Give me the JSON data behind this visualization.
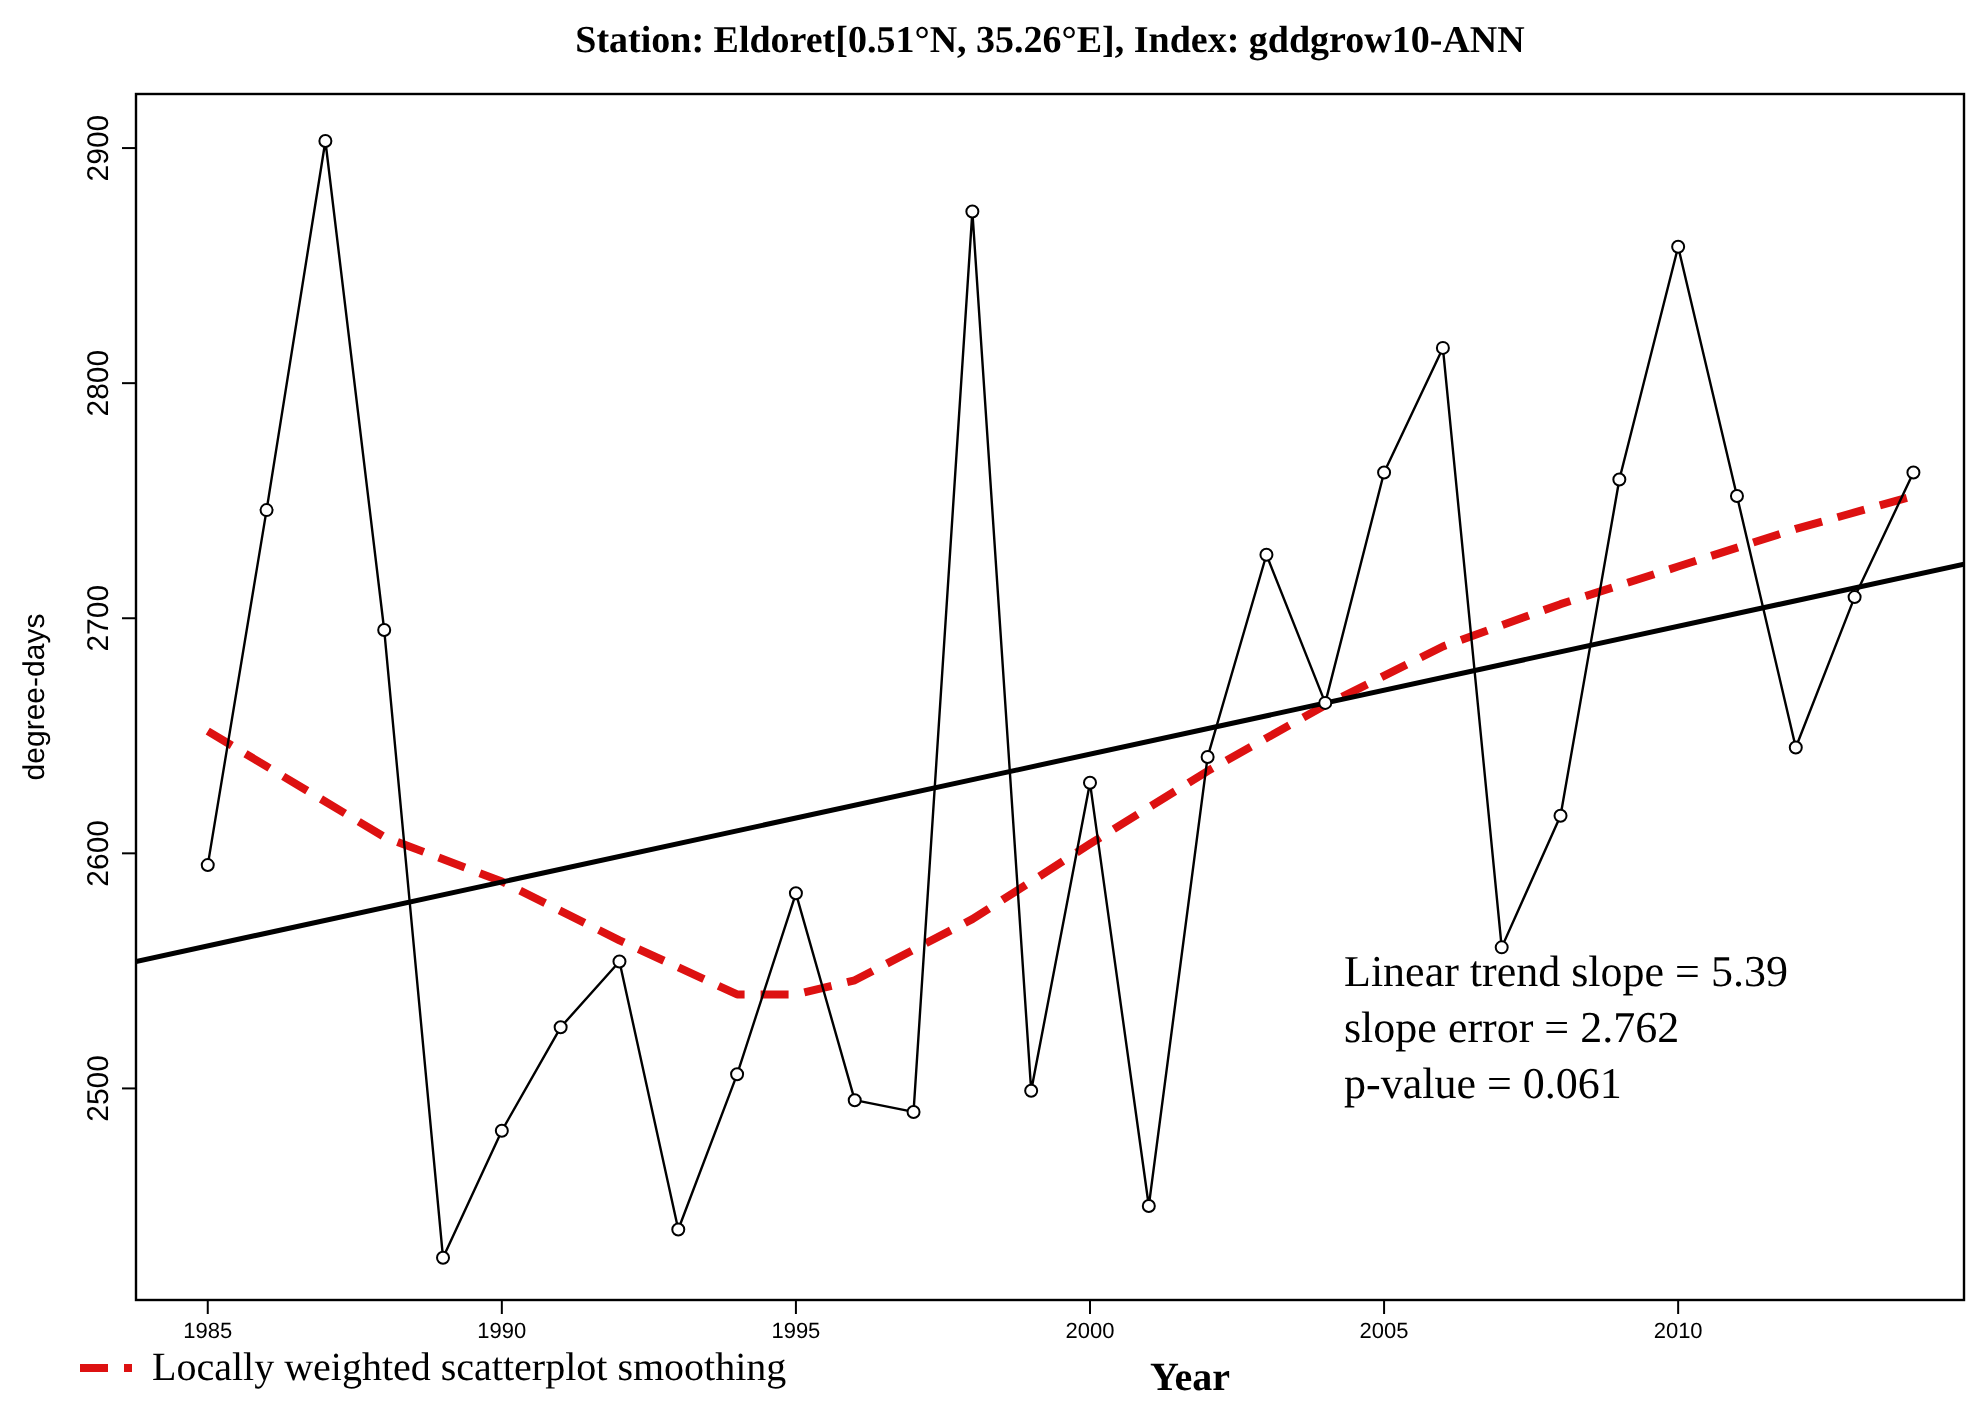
{
  "chart_data": {
    "type": "line",
    "title": "Station: Eldoret[0.51°N, 35.26°E], Index: gddgrow10-ANN",
    "xlabel": "Year",
    "ylabel": "degree-days",
    "x": [
      1985,
      1986,
      1987,
      1988,
      1989,
      1990,
      1991,
      1992,
      1993,
      1994,
      1995,
      1996,
      1997,
      1998,
      1999,
      2000,
      2001,
      2002,
      2003,
      2004,
      2005,
      2006,
      2007,
      2008,
      2009,
      2010,
      2011,
      2012,
      2013,
      2014
    ],
    "series": [
      {
        "color": "#000000",
        "marker": "circle",
        "line_style": "solid",
        "values": [
          2595,
          2746,
          2903,
          2695,
          2428,
          2482,
          2526,
          2554,
          2440,
          2506,
          2583,
          2495,
          2490,
          2873,
          2499,
          2630,
          2450,
          2641,
          2727,
          2664,
          2762,
          2815,
          2560,
          2616,
          2759,
          2858,
          2752,
          2645,
          2709,
          2762
        ]
      },
      {
        "color": "#000000",
        "marker": "none",
        "line_style": "solid",
        "x": [
          1983.78,
          2014.86
        ],
        "values": [
          2554,
          2723
        ]
      },
      {
        "name": "Locally weighted scatterplot smoothing",
        "color": "#dd1111",
        "marker": "none",
        "line_style": "dashed",
        "x": [
          1985,
          1988,
          1990,
          1992,
          1994,
          1995,
          1996,
          1998,
          2000,
          2002,
          2004,
          2006,
          2008,
          2010,
          2012,
          2014
        ],
        "values": [
          2652,
          2607,
          2588,
          2563,
          2540,
          2540,
          2546,
          2572,
          2604,
          2635,
          2663,
          2688,
          2706,
          2722,
          2738,
          2752
        ]
      }
    ],
    "xlim": [
      1983.78,
      2014.86
    ],
    "ylim": [
      2410,
      2923
    ],
    "xticks": [
      1985,
      1990,
      1995,
      2000,
      2005,
      2010
    ],
    "yticks": [
      2500,
      2600,
      2700,
      2800,
      2900
    ],
    "grid": false,
    "legend": "bottom left",
    "annotations": [
      "Linear trend slope = 5.39",
      "slope error = 2.762",
      "p-value = 0.061"
    ]
  }
}
